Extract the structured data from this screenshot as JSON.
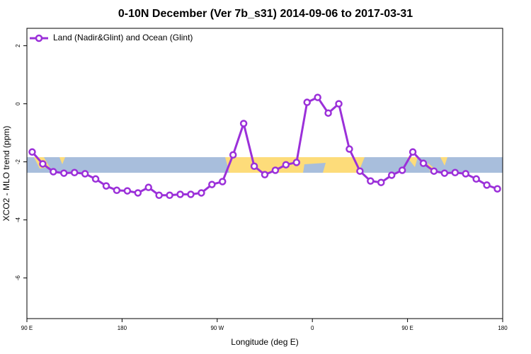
{
  "chart_data": {
    "type": "line",
    "title": "0-10N December (Ver 7b_s31)   2014-09-06 to 2017-03-31",
    "x_label": "Longitude (deg E)",
    "y_label": "XCO2 - MLO trend (ppm)",
    "x": [
      95,
      105,
      115,
      125,
      135,
      145,
      155,
      165,
      175,
      185,
      195,
      205,
      215,
      225,
      235,
      245,
      255,
      265,
      275,
      285,
      295,
      305,
      315,
      325,
      335,
      345,
      355,
      365,
      375,
      385,
      395,
      405,
      415,
      425,
      435,
      445,
      455,
      465,
      475,
      485,
      495,
      505,
      515,
      525,
      535
    ],
    "series": [
      {
        "name": "Land (Nadir&Glint) and Ocean (Glint)",
        "color": "#9b30d9",
        "values": [
          -1.66,
          -2.07,
          -2.34,
          -2.39,
          -2.37,
          -2.41,
          -2.59,
          -2.83,
          -2.98,
          -3.0,
          -3.07,
          -2.88,
          -3.15,
          -3.15,
          -3.12,
          -3.12,
          -3.07,
          -2.78,
          -2.68,
          -1.76,
          -0.68,
          -2.15,
          -2.44,
          -2.29,
          -2.1,
          -2.02,
          0.05,
          0.22,
          -0.32,
          0.0,
          -1.56,
          -2.32,
          -2.66,
          -2.71,
          -2.46,
          -2.29,
          -1.66,
          -2.05,
          -2.32,
          -2.39,
          -2.37,
          -2.41,
          -2.59,
          -2.8,
          -2.93
        ]
      }
    ],
    "xlim": [
      90,
      540
    ],
    "xticks": [
      {
        "value": 90,
        "label": "90 E"
      },
      180,
      {
        "value": 270,
        "label": "90 W"
      },
      {
        "value": 360,
        "label": "0"
      },
      {
        "value": 450,
        "label": "90 E"
      },
      {
        "value": 540,
        "label": "180"
      }
    ],
    "ylim": [
      -7.4,
      2.6
    ],
    "yticks": [
      -6,
      -4,
      -2,
      0,
      2
    ],
    "legend": "top-left"
  }
}
